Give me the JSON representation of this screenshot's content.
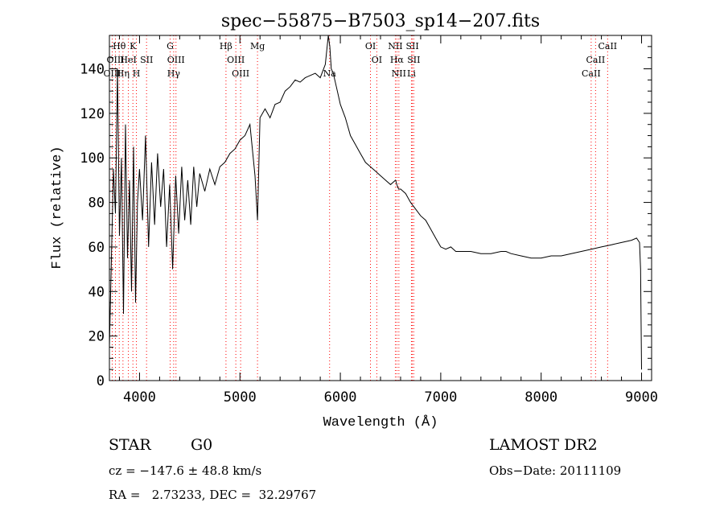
{
  "chart_data": {
    "type": "line",
    "title": "spec−55875−B7503_sp14−207.fits",
    "xlabel": "Wavelength (Å)",
    "ylabel": "Flux (relative)",
    "xlim": [
      3700,
      9100
    ],
    "ylim": [
      0,
      155
    ],
    "x_ticks": [
      "4000",
      "5000",
      "6000",
      "7000",
      "8000",
      "9000"
    ],
    "y_ticks": [
      "0",
      "20",
      "40",
      "60",
      "80",
      "100",
      "120",
      "140"
    ],
    "grid": false,
    "legend": "none",
    "line_color": "#000000",
    "marker_color": "#ff0000",
    "series": [
      {
        "x": [
          3700,
          3720,
          3740,
          3760,
          3780,
          3800,
          3820,
          3840,
          3860,
          3880,
          3900,
          3920,
          3940,
          3960,
          3980,
          4000,
          4030,
          4060,
          4090,
          4120,
          4150,
          4180,
          4210,
          4240,
          4270,
          4300,
          4330,
          4360,
          4390,
          4420,
          4450,
          4480,
          4510,
          4540,
          4570,
          4600,
          4650,
          4700,
          4750,
          4800,
          4850,
          4900,
          4950,
          5000,
          5050,
          5100,
          5150,
          5175,
          5200,
          5250,
          5300,
          5350,
          5400,
          5450,
          5500,
          5550,
          5600,
          5650,
          5700,
          5750,
          5800,
          5850,
          5880,
          5895,
          5910,
          5930,
          5960,
          6000,
          6050,
          6100,
          6150,
          6200,
          6250,
          6300,
          6350,
          6400,
          6450,
          6500,
          6550,
          6563,
          6580,
          6600,
          6650,
          6700,
          6750,
          6800,
          6850,
          6900,
          6950,
          7000,
          7050,
          7100,
          7150,
          7200,
          7300,
          7400,
          7500,
          7600,
          7650,
          7700,
          7800,
          7900,
          8000,
          8100,
          8200,
          8300,
          8400,
          8500,
          8600,
          8700,
          8800,
          8900,
          8950,
          8980,
          8990,
          9000
        ],
        "y": [
          15,
          55,
          95,
          75,
          140,
          65,
          100,
          30,
          115,
          55,
          90,
          40,
          105,
          35,
          80,
          95,
          72,
          110,
          60,
          98,
          70,
          102,
          78,
          95,
          60,
          88,
          50,
          92,
          66,
          96,
          72,
          90,
          70,
          96,
          78,
          93,
          85,
          95,
          88,
          96,
          98,
          102,
          104,
          108,
          110,
          115,
          92,
          72,
          118,
          122,
          118,
          124,
          125,
          130,
          132,
          135,
          134,
          136,
          137,
          138,
          136,
          142,
          155,
          150,
          140,
          138,
          132,
          124,
          118,
          110,
          106,
          102,
          98,
          96,
          94,
          92,
          90,
          88,
          90,
          88,
          86,
          86,
          84,
          80,
          77,
          74,
          72,
          68,
          64,
          60,
          59,
          60,
          58,
          58,
          58,
          57,
          57,
          58,
          58,
          57,
          56,
          55,
          55,
          56,
          56,
          57,
          58,
          59,
          60,
          61,
          62,
          63,
          64,
          62,
          50,
          5
        ]
      }
    ],
    "line_labels": [
      {
        "label": "Hθ",
        "x": 3798,
        "row": 1
      },
      {
        "label": "K",
        "x": 3934,
        "row": 1
      },
      {
        "label": "OIII",
        "x": 3760,
        "row": 2
      },
      {
        "label": "HeI",
        "x": 3889,
        "row": 2
      },
      {
        "label": "SII",
        "x": 4070,
        "row": 2
      },
      {
        "label": "OIII",
        "x": 3728,
        "row": 3
      },
      {
        "label": "Hη",
        "x": 3835,
        "row": 3
      },
      {
        "label": "H",
        "x": 3969,
        "row": 3
      },
      {
        "label": "G",
        "x": 4305,
        "row": 1
      },
      {
        "label": "OIII",
        "x": 4363,
        "row": 2
      },
      {
        "label": "Hγ",
        "x": 4340,
        "row": 3
      },
      {
        "label": "Hβ",
        "x": 4861,
        "row": 1
      },
      {
        "label": "OIII",
        "x": 4959,
        "row": 2
      },
      {
        "label": "OIII",
        "x": 5007,
        "row": 3
      },
      {
        "label": "Mg",
        "x": 5175,
        "row": 1
      },
      {
        "label": "Na",
        "x": 5893,
        "row": 3
      },
      {
        "label": "OI",
        "x": 6300,
        "row": 1
      },
      {
        "label": "OI",
        "x": 6363,
        "row": 2
      },
      {
        "label": "NII",
        "x": 6548,
        "row": 1
      },
      {
        "label": "SII",
        "x": 6717,
        "row": 1
      },
      {
        "label": "Hα",
        "x": 6563,
        "row": 2
      },
      {
        "label": "SII",
        "x": 6731,
        "row": 2
      },
      {
        "label": "NII",
        "x": 6583,
        "row": 3
      },
      {
        "label": "Li",
        "x": 6708,
        "row": 3
      },
      {
        "label": "CaII",
        "x": 8662,
        "row": 1
      },
      {
        "label": "CaII",
        "x": 8542,
        "row": 2
      },
      {
        "label": "CaII",
        "x": 8498,
        "row": 3
      }
    ],
    "line_markers": [
      3728,
      3760,
      3798,
      3835,
      3889,
      3934,
      3969,
      4070,
      4305,
      4340,
      4363,
      4861,
      4959,
      5007,
      5175,
      5893,
      6300,
      6363,
      6548,
      6563,
      6583,
      6708,
      6717,
      6731,
      8498,
      8542,
      8662
    ]
  },
  "info": {
    "class": "STAR",
    "subclass": "G0",
    "survey": "LAMOST DR2",
    "cz": "cz = −147.6 ± 48.8 km/s",
    "obs_date": "Obs−Date: 20111109",
    "coords": "RA =   2.73233, DEC =  32.29767"
  }
}
